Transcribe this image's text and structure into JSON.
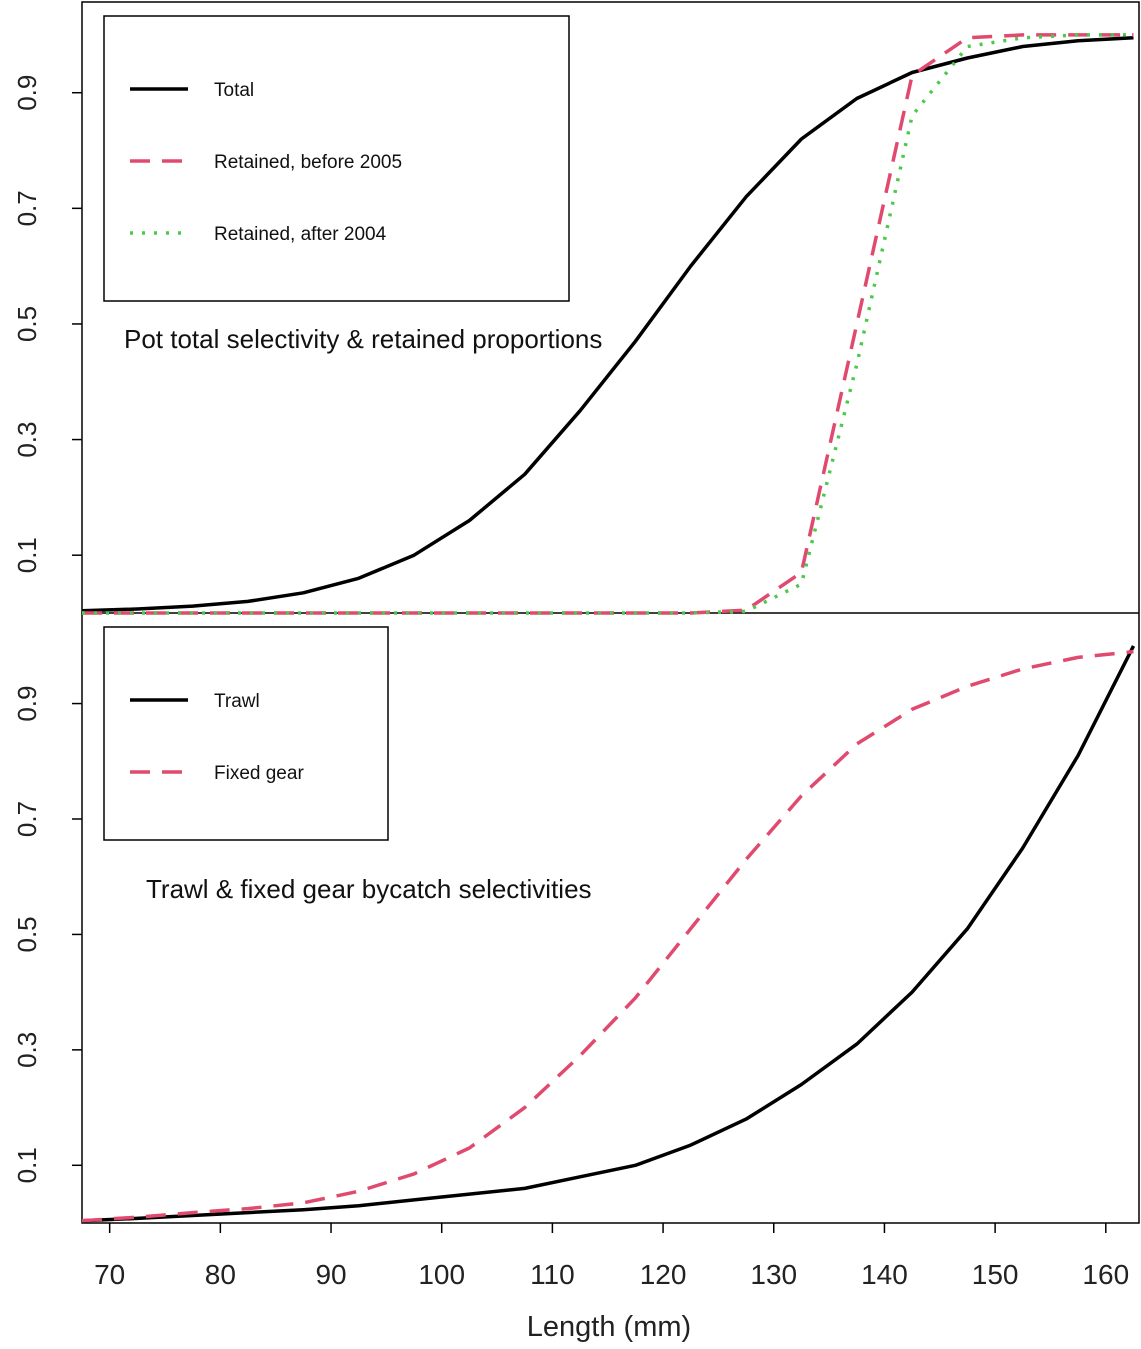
{
  "chart_data": [
    {
      "type": "line",
      "panel": "top",
      "annotation": "Pot total selectivity & retained proportions",
      "xlabel": "",
      "ylabel": "",
      "xlim": [
        67.5,
        163
      ],
      "ylim": [
        0,
        1.05
      ],
      "yticks": [
        "0.1",
        "0.3",
        "0.5",
        "0.7",
        "0.9"
      ],
      "grid": false,
      "legend_position": "top-left",
      "series": [
        {
          "name": "Total",
          "color": "#000000",
          "dash": "solid",
          "x": [
            67.5,
            72.5,
            77.5,
            82.5,
            87.5,
            92.5,
            97.5,
            102.5,
            107.5,
            112.5,
            117.5,
            122.5,
            127.5,
            132.5,
            137.5,
            142.5,
            147.5,
            152.5,
            157.5,
            162.5
          ],
          "y": [
            0.004,
            0.007,
            0.012,
            0.02,
            0.035,
            0.06,
            0.1,
            0.16,
            0.24,
            0.35,
            0.47,
            0.6,
            0.72,
            0.82,
            0.89,
            0.935,
            0.96,
            0.98,
            0.99,
            0.995
          ]
        },
        {
          "name": "Retained, before 2005",
          "color": "#E04A6E",
          "dash": "dashed",
          "x": [
            67.5,
            72.5,
            77.5,
            82.5,
            87.5,
            92.5,
            97.5,
            102.5,
            107.5,
            112.5,
            117.5,
            122.5,
            127.5,
            132.5,
            137.5,
            142.5,
            147.5,
            152.5,
            157.5,
            162.5
          ],
          "y": [
            0,
            0,
            0,
            0,
            0,
            0,
            0,
            0,
            0,
            0,
            0,
            0,
            0.005,
            0.07,
            0.5,
            0.93,
            0.995,
            1.0,
            1.0,
            1.0
          ]
        },
        {
          "name": "Retained, after 2004",
          "color": "#4CC94C",
          "dash": "dotted",
          "x": [
            67.5,
            72.5,
            77.5,
            82.5,
            87.5,
            92.5,
            97.5,
            102.5,
            107.5,
            112.5,
            117.5,
            122.5,
            127.5,
            132.5,
            137.5,
            142.5,
            147.5,
            152.5,
            157.5,
            162.5
          ],
          "y": [
            0,
            0,
            0,
            0,
            0,
            0,
            0,
            0,
            0,
            0,
            0,
            0,
            0.003,
            0.05,
            0.43,
            0.86,
            0.98,
            0.995,
            1.0,
            1.0
          ]
        }
      ]
    },
    {
      "type": "line",
      "panel": "bottom",
      "annotation": "Trawl & fixed gear bycatch selectivities",
      "xlabel": "Length (mm)",
      "ylabel": "",
      "xlim": [
        67.5,
        163
      ],
      "ylim": [
        0,
        1.05
      ],
      "xticks": [
        "70",
        "80",
        "90",
        "100",
        "110",
        "120",
        "130",
        "140",
        "150",
        "160"
      ],
      "yticks": [
        "0.1",
        "0.3",
        "0.5",
        "0.7",
        "0.9"
      ],
      "grid": false,
      "legend_position": "top-left",
      "series": [
        {
          "name": "Trawl",
          "color": "#000000",
          "dash": "solid",
          "x": [
            67.5,
            72.5,
            77.5,
            82.5,
            87.5,
            92.5,
            97.5,
            102.5,
            107.5,
            112.5,
            117.5,
            122.5,
            127.5,
            132.5,
            137.5,
            142.5,
            147.5,
            152.5,
            157.5,
            162.5
          ],
          "y": [
            0.004,
            0.008,
            0.013,
            0.018,
            0.023,
            0.03,
            0.04,
            0.05,
            0.06,
            0.08,
            0.1,
            0.135,
            0.18,
            0.24,
            0.31,
            0.4,
            0.51,
            0.65,
            0.81,
            1.0
          ]
        },
        {
          "name": "Fixed gear",
          "color": "#E04A6E",
          "dash": "dashed",
          "x": [
            67.5,
            72.5,
            77.5,
            82.5,
            87.5,
            92.5,
            97.5,
            102.5,
            107.5,
            112.5,
            117.5,
            122.5,
            127.5,
            132.5,
            137.5,
            142.5,
            147.5,
            152.5,
            157.5,
            162.5
          ],
          "y": [
            0.004,
            0.01,
            0.018,
            0.025,
            0.035,
            0.055,
            0.085,
            0.13,
            0.2,
            0.29,
            0.39,
            0.51,
            0.63,
            0.74,
            0.83,
            0.89,
            0.93,
            0.96,
            0.98,
            0.99
          ]
        }
      ]
    }
  ]
}
